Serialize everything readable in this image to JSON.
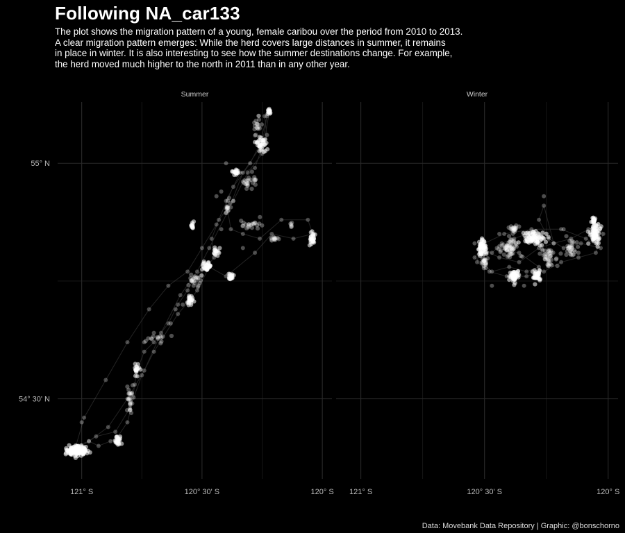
{
  "title": "Following NA_car133",
  "subtitle": [
    "The plot shows the migration pattern of a young, female caribou over the period from 2010 to 2013.",
    "A clear migration pattern emerges: While the herd covers large distances in summer, it remains",
    "in place in winter. It is also interesting to see how the summer destinations change. For example,",
    "the herd moved much higher to the north in 2011 than in any other year."
  ],
  "caption": "Data: Movebank Data Repository | Graphic: @bonschorno",
  "chart_data": {
    "type": "scatter",
    "xlabel": "",
    "ylabel": "",
    "x_ticks": [
      {
        "value": -121.0,
        "label": "121° S"
      },
      {
        "value": -120.5,
        "label": "120° 30' S"
      },
      {
        "value": -120.0,
        "label": "120° S"
      }
    ],
    "y_ticks": [
      {
        "value": 55.0,
        "label": "55° N"
      },
      {
        "value": 54.5,
        "label": "54° 30' N"
      }
    ],
    "xlim": [
      -121.1,
      -119.96
    ],
    "ylim": [
      54.33,
      55.13
    ],
    "grid": true,
    "point_color": "#ffffff",
    "line_color": "#ffffff",
    "panels": [
      {
        "name": "Summer",
        "track": [
          [
            -121.02,
            54.4
          ],
          [
            -120.97,
            54.41
          ],
          [
            -120.93,
            54.4
          ],
          [
            -120.88,
            54.41
          ],
          [
            -120.85,
            54.42
          ],
          [
            -120.81,
            54.45
          ],
          [
            -120.79,
            54.49
          ],
          [
            -120.78,
            54.53
          ],
          [
            -120.77,
            54.56
          ],
          [
            -120.74,
            54.6
          ],
          [
            -120.7,
            54.62
          ],
          [
            -120.64,
            54.66
          ],
          [
            -120.6,
            54.7
          ],
          [
            -120.56,
            54.73
          ],
          [
            -120.53,
            54.76
          ],
          [
            -120.48,
            54.78
          ],
          [
            -120.45,
            54.8
          ],
          [
            -120.46,
            54.84
          ],
          [
            -120.43,
            54.88
          ],
          [
            -120.37,
            54.92
          ],
          [
            -120.31,
            54.98
          ],
          [
            -120.25,
            55.02
          ],
          [
            -120.23,
            55.06
          ],
          [
            -120.24,
            55.1
          ],
          [
            -120.22,
            55.11
          ],
          [
            -120.24,
            55.05
          ],
          [
            -120.28,
            54.99
          ],
          [
            -120.34,
            54.98
          ],
          [
            -120.4,
            54.92
          ],
          [
            -120.38,
            54.86
          ],
          [
            -120.33,
            54.85
          ],
          [
            -120.26,
            54.84
          ],
          [
            -120.17,
            54.88
          ],
          [
            -120.06,
            54.88
          ],
          [
            -120.04,
            54.85
          ],
          [
            -120.12,
            54.84
          ],
          [
            -120.21,
            54.85
          ],
          [
            -120.28,
            54.81
          ],
          [
            -120.4,
            54.76
          ],
          [
            -120.47,
            54.78
          ],
          [
            -120.52,
            54.73
          ],
          [
            -120.55,
            54.71
          ],
          [
            -120.6,
            54.68
          ],
          [
            -120.7,
            54.6
          ],
          [
            -120.75,
            54.55
          ],
          [
            -120.8,
            54.48
          ],
          [
            -120.86,
            54.43
          ],
          [
            -120.94,
            54.42
          ],
          [
            -121.0,
            54.4
          ],
          [
            -121.03,
            54.39
          ],
          [
            -120.99,
            54.46
          ],
          [
            -120.9,
            54.54
          ],
          [
            -120.81,
            54.62
          ],
          [
            -120.72,
            54.69
          ],
          [
            -120.64,
            54.74
          ],
          [
            -120.56,
            54.77
          ],
          [
            -120.5,
            54.82
          ],
          [
            -120.44,
            54.87
          ],
          [
            -120.37,
            54.95
          ],
          [
            -120.3,
            55.0
          ],
          [
            -120.26,
            55.04
          ],
          [
            -120.23,
            55.1
          ],
          [
            -120.25,
            55.04
          ],
          [
            -120.33,
            54.98
          ],
          [
            -120.39,
            54.9
          ],
          [
            -120.47,
            54.82
          ],
          [
            -120.52,
            54.77
          ],
          [
            -120.59,
            54.72
          ],
          [
            -120.67,
            54.64
          ],
          [
            -120.74,
            54.56
          ],
          [
            -120.81,
            54.5
          ],
          [
            -120.89,
            54.44
          ],
          [
            -120.97,
            54.41
          ],
          [
            -121.02,
            54.4
          ]
        ],
        "clusters": [
          {
            "lon": -121.02,
            "lat": 54.39,
            "spread_lon": 0.04,
            "spread_lat": 0.008,
            "n": 170,
            "dense": true
          },
          {
            "lon": -120.85,
            "lat": 54.41,
            "spread_lon": 0.012,
            "spread_lat": 0.008,
            "n": 25,
            "dense": true
          },
          {
            "lon": -120.8,
            "lat": 54.5,
            "spread_lon": 0.015,
            "spread_lat": 0.035,
            "n": 25,
            "dense": false
          },
          {
            "lon": -120.77,
            "lat": 54.56,
            "spread_lon": 0.01,
            "spread_lat": 0.012,
            "n": 18,
            "dense": true
          },
          {
            "lon": -120.68,
            "lat": 54.63,
            "spread_lon": 0.035,
            "spread_lat": 0.012,
            "n": 14,
            "dense": false
          },
          {
            "lon": -120.55,
            "lat": 54.71,
            "spread_lon": 0.012,
            "spread_lat": 0.01,
            "n": 22,
            "dense": true
          },
          {
            "lon": -120.53,
            "lat": 54.75,
            "spread_lon": 0.025,
            "spread_lat": 0.012,
            "n": 22,
            "dense": false
          },
          {
            "lon": -120.48,
            "lat": 54.78,
            "spread_lon": 0.016,
            "spread_lat": 0.01,
            "n": 34,
            "dense": true
          },
          {
            "lon": -120.44,
            "lat": 54.81,
            "spread_lon": 0.012,
            "spread_lat": 0.01,
            "n": 16,
            "dense": true
          },
          {
            "lon": -120.38,
            "lat": 54.76,
            "spread_lon": 0.012,
            "spread_lat": 0.008,
            "n": 22,
            "dense": true
          },
          {
            "lon": -120.54,
            "lat": 54.87,
            "spread_lon": 0.008,
            "spread_lat": 0.007,
            "n": 12,
            "dense": true
          },
          {
            "lon": -120.39,
            "lat": 54.91,
            "spread_lon": 0.012,
            "spread_lat": 0.018,
            "n": 14,
            "dense": false
          },
          {
            "lon": -120.3,
            "lat": 54.87,
            "spread_lon": 0.04,
            "spread_lat": 0.01,
            "n": 22,
            "dense": false
          },
          {
            "lon": -120.3,
            "lat": 54.96,
            "spread_lon": 0.025,
            "spread_lat": 0.012,
            "n": 24,
            "dense": false
          },
          {
            "lon": -120.36,
            "lat": 54.98,
            "spread_lon": 0.012,
            "spread_lat": 0.006,
            "n": 18,
            "dense": true
          },
          {
            "lon": -120.25,
            "lat": 55.04,
            "spread_lon": 0.02,
            "spread_lat": 0.012,
            "n": 34,
            "dense": true
          },
          {
            "lon": -120.27,
            "lat": 55.08,
            "spread_lon": 0.015,
            "spread_lat": 0.025,
            "n": 18,
            "dense": false
          },
          {
            "lon": -120.22,
            "lat": 55.11,
            "spread_lon": 0.006,
            "spread_lat": 0.006,
            "n": 14,
            "dense": true
          },
          {
            "lon": -120.2,
            "lat": 54.84,
            "spread_lon": 0.018,
            "spread_lat": 0.005,
            "n": 12,
            "dense": false
          },
          {
            "lon": -120.04,
            "lat": 54.84,
            "spread_lon": 0.012,
            "spread_lat": 0.015,
            "n": 28,
            "dense": true
          },
          {
            "lon": -120.13,
            "lat": 54.87,
            "spread_lon": 0.006,
            "spread_lat": 0.006,
            "n": 6,
            "dense": false
          }
        ],
        "extras": [
          [
            -121.0,
            54.45
          ],
          [
            -120.74,
            54.62
          ],
          [
            -120.7,
            54.64
          ],
          [
            -120.61,
            54.69
          ],
          [
            -120.63,
            54.66
          ],
          [
            -120.58,
            54.7
          ],
          [
            -120.42,
            54.86
          ],
          [
            -120.37,
            54.92
          ],
          [
            -120.33,
            54.82
          ],
          [
            -120.44,
            54.93
          ],
          [
            -120.4,
            55.0
          ],
          [
            -120.42,
            54.94
          ]
        ]
      },
      {
        "name": "Winter",
        "track": [
          [
            -120.52,
            54.82
          ],
          [
            -120.47,
            54.81
          ],
          [
            -120.43,
            54.83
          ],
          [
            -120.38,
            54.84
          ],
          [
            -120.33,
            54.85
          ],
          [
            -120.27,
            54.84
          ],
          [
            -120.22,
            54.83
          ],
          [
            -120.15,
            54.84
          ],
          [
            -120.08,
            54.86
          ],
          [
            -120.04,
            54.87
          ],
          [
            -120.02,
            54.85
          ],
          [
            -120.05,
            54.81
          ],
          [
            -120.12,
            54.8
          ],
          [
            -120.19,
            54.79
          ],
          [
            -120.26,
            54.77
          ],
          [
            -120.33,
            54.76
          ],
          [
            -120.41,
            54.76
          ],
          [
            -120.48,
            54.77
          ],
          [
            -120.53,
            54.79
          ],
          [
            -120.52,
            54.82
          ],
          [
            -120.44,
            54.8
          ],
          [
            -120.36,
            54.79
          ],
          [
            -120.28,
            54.82
          ],
          [
            -120.22,
            54.83
          ],
          [
            -120.26,
            54.91
          ],
          [
            -120.28,
            54.88
          ],
          [
            -120.24,
            54.84
          ],
          [
            -120.18,
            54.82
          ],
          [
            -120.11,
            54.83
          ],
          [
            -120.03,
            54.82
          ],
          [
            -120.09,
            54.84
          ],
          [
            -120.19,
            54.86
          ],
          [
            -120.31,
            54.86
          ],
          [
            -120.42,
            54.85
          ],
          [
            -120.5,
            54.83
          ],
          [
            -120.54,
            54.8
          ],
          [
            -120.47,
            54.77
          ],
          [
            -120.4,
            54.78
          ],
          [
            -120.33,
            54.77
          ],
          [
            -120.28,
            54.78
          ],
          [
            -120.36,
            54.81
          ],
          [
            -120.45,
            54.82
          ]
        ],
        "clusters": [
          {
            "lon": -120.51,
            "lat": 54.82,
            "spread_lon": 0.015,
            "spread_lat": 0.015,
            "n": 60,
            "dense": true
          },
          {
            "lon": -120.5,
            "lat": 54.79,
            "spread_lon": 0.01,
            "spread_lat": 0.012,
            "n": 22,
            "dense": false
          },
          {
            "lon": -120.38,
            "lat": 54.76,
            "spread_lon": 0.016,
            "spread_lat": 0.01,
            "n": 60,
            "dense": true
          },
          {
            "lon": -120.29,
            "lat": 54.76,
            "spread_lon": 0.014,
            "spread_lat": 0.01,
            "n": 40,
            "dense": true
          },
          {
            "lon": -120.4,
            "lat": 54.82,
            "spread_lon": 0.03,
            "spread_lat": 0.018,
            "n": 60,
            "dense": false
          },
          {
            "lon": -120.3,
            "lat": 54.84,
            "spread_lon": 0.04,
            "spread_lat": 0.012,
            "n": 80,
            "dense": true
          },
          {
            "lon": -120.24,
            "lat": 54.8,
            "spread_lon": 0.03,
            "spread_lat": 0.02,
            "n": 40,
            "dense": false
          },
          {
            "lon": -120.38,
            "lat": 54.86,
            "spread_lon": 0.02,
            "spread_lat": 0.006,
            "n": 22,
            "dense": false
          },
          {
            "lon": -120.05,
            "lat": 54.85,
            "spread_lon": 0.02,
            "spread_lat": 0.02,
            "n": 70,
            "dense": true
          },
          {
            "lon": -120.06,
            "lat": 54.88,
            "spread_lon": 0.008,
            "spread_lat": 0.006,
            "n": 18,
            "dense": true
          },
          {
            "lon": -120.15,
            "lat": 54.82,
            "spread_lon": 0.025,
            "spread_lat": 0.015,
            "n": 30,
            "dense": false
          }
        ],
        "extras": [
          [
            -120.26,
            54.93
          ],
          [
            -120.44,
            54.85
          ],
          [
            -120.54,
            54.83
          ],
          [
            -120.18,
            54.86
          ],
          [
            -120.12,
            54.81
          ],
          [
            -120.34,
            54.74
          ],
          [
            -120.47,
            54.74
          ]
        ]
      }
    ]
  }
}
